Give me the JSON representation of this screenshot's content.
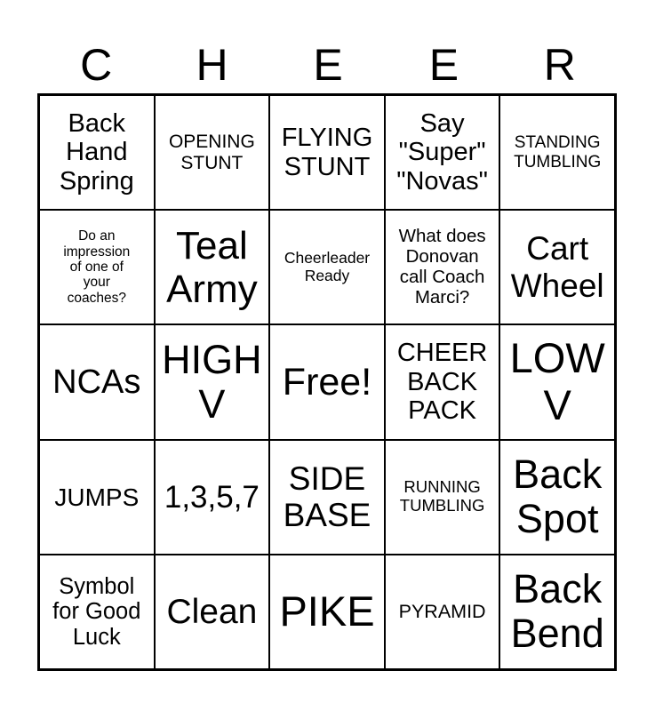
{
  "header": [
    "C",
    "H",
    "E",
    "E",
    "R"
  ],
  "cells": [
    {
      "text": "Back\nHand\nSpring",
      "size": 29
    },
    {
      "text": "OPENING\nSTUNT",
      "size": 21
    },
    {
      "text": "FLYING\nSTUNT",
      "size": 29
    },
    {
      "text": "Say\n\"Super\"\n\"Novas\"",
      "size": 29
    },
    {
      "text": "STANDING\nTUMBLING",
      "size": 19
    },
    {
      "text": "Do an\nimpression\nof one of\nyour\ncoaches?",
      "size": 15.5
    },
    {
      "text": "Teal\nArmy",
      "size": 44
    },
    {
      "text": "Cheerleader\nReady",
      "size": 17.5
    },
    {
      "text": "What does\nDonovan\ncall Coach\nMarci?",
      "size": 20.5
    },
    {
      "text": "Cart\nWheel",
      "size": 37
    },
    {
      "text": "NCAs",
      "size": 38
    },
    {
      "text": "HIGH\nV",
      "size": 45
    },
    {
      "text": "Free!",
      "size": 43
    },
    {
      "text": "CHEER\nBACK\nPACK",
      "size": 29
    },
    {
      "text": "LOW\nV",
      "size": 47
    },
    {
      "text": "JUMPS",
      "size": 28
    },
    {
      "text": "1,3,5,7",
      "size": 35
    },
    {
      "text": "SIDE\nBASE",
      "size": 37
    },
    {
      "text": "RUNNING\nTUMBLING",
      "size": 18.5
    },
    {
      "text": "Back\nSpot",
      "size": 45
    },
    {
      "text": "Symbol\nfor Good\nLuck",
      "size": 25.5
    },
    {
      "text": "Clean",
      "size": 39
    },
    {
      "text": "PIKE",
      "size": 47
    },
    {
      "text": "PYRAMID",
      "size": 21.5
    },
    {
      "text": "Back\nBend",
      "size": 45
    }
  ]
}
